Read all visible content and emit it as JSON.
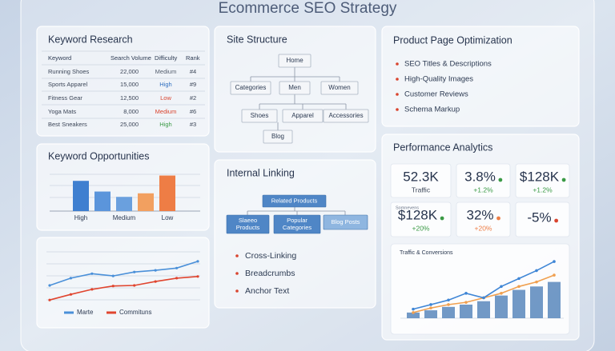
{
  "title": "Ecommerce SEO Strategy",
  "keyword_research": {
    "title": "Keyword Research",
    "columns": [
      "Keyword",
      "Search Volume",
      "Difficulty",
      "Rank"
    ],
    "rows": [
      [
        "Running Shoes",
        "22,000",
        "Medium",
        "#4"
      ],
      [
        "Sports Apparel",
        "15,000",
        "High",
        "#9"
      ],
      [
        "Fitness Gear",
        "12,500",
        "Low",
        "#2"
      ],
      [
        "Yoga Mats",
        "8,000",
        "Medium",
        "#6"
      ],
      [
        "Best Sneakers",
        "25,000",
        "High",
        "#3"
      ]
    ],
    "difficulty_colors": [
      "#555f6e",
      "#2f6fc0",
      "#d9442e",
      "#d9442e",
      "#3a9a45"
    ]
  },
  "keyword_opportunities": {
    "title": "Keyword Opportunities",
    "chart_data": {
      "type": "bar",
      "categories": [
        "High",
        null,
        "Medium",
        null,
        "Low"
      ],
      "values": [
        3.4,
        2.2,
        1.6,
        2.0,
        4.0
      ],
      "colors": [
        "#3f7fd0",
        "#5b95db",
        "#6aa0de",
        "#f2a060",
        "#ee7d45"
      ],
      "ylim": [
        0,
        4.5
      ]
    }
  },
  "trend_chart": {
    "chart_data": {
      "type": "line",
      "categories": [
        null,
        null,
        null,
        null,
        null,
        null,
        null,
        null
      ],
      "ylim": [
        0,
        10
      ],
      "series": [
        {
          "name": "Marte",
          "color": "#4a90d9",
          "values": [
            4.0,
            5.3,
            6.1,
            5.7,
            6.4,
            6.7,
            7.1,
            8.3
          ]
        },
        {
          "name": "Commituns",
          "color": "#e0452f",
          "values": [
            1.4,
            2.4,
            3.3,
            3.9,
            4.0,
            4.7,
            5.3,
            5.6
          ]
        }
      ]
    }
  },
  "site_structure": {
    "title": "Site Structure",
    "nodes": [
      "Home",
      "Categories",
      "Men",
      "Women",
      "Shoes",
      "Apparel",
      "Accessories",
      "Blog"
    ]
  },
  "internal_linking": {
    "title": "Internal Linking",
    "nodes": [
      "Related Products",
      "Slaeeo Products",
      "Popular Categories",
      "Blog Posts"
    ],
    "items": [
      "Cross-Linking",
      "Breadcrumbs",
      "Anchor Text"
    ]
  },
  "product_page": {
    "title": "Product Page Optimization",
    "items": [
      "SEO Titles & Descriptions",
      "High-Quality Images",
      "Customer Reviews",
      "Schema Markup"
    ]
  },
  "performance": {
    "title": "Performance Analytics",
    "metrics": [
      {
        "value": "52.3K",
        "sub": "Traffic"
      },
      {
        "value": "3.8%",
        "sub": "+1.2%",
        "dot": "#3a9a45"
      },
      {
        "value": "$128K",
        "sub": "+1.2%",
        "dot": "#3a9a45"
      },
      {
        "caption": "Somnevens",
        "value": "$128K",
        "sub": "+20%",
        "dot": "#3a9a45"
      },
      {
        "value": "32%",
        "sub": "+20%",
        "dot": "#ee7d45"
      },
      {
        "value": "-5%",
        "dot": "#d9442e"
      }
    ],
    "chart_title": "Traffic & Conversions",
    "chart_data": {
      "type": "combo",
      "categories": [
        null,
        null,
        null,
        null,
        null,
        null,
        null,
        null,
        null
      ],
      "ylim": [
        0,
        55
      ],
      "series": [
        {
          "type": "bar",
          "color": "#4f7fb8",
          "values": [
            5,
            7,
            10,
            12,
            15,
            20,
            25,
            28,
            32
          ]
        },
        {
          "type": "line",
          "color": "#f0a050",
          "values": [
            5,
            9,
            12,
            14,
            18,
            22,
            28,
            32,
            38
          ]
        },
        {
          "type": "line",
          "color": "#3f86d6",
          "values": [
            8,
            12,
            16,
            22,
            18,
            28,
            35,
            42,
            50
          ]
        }
      ]
    }
  }
}
